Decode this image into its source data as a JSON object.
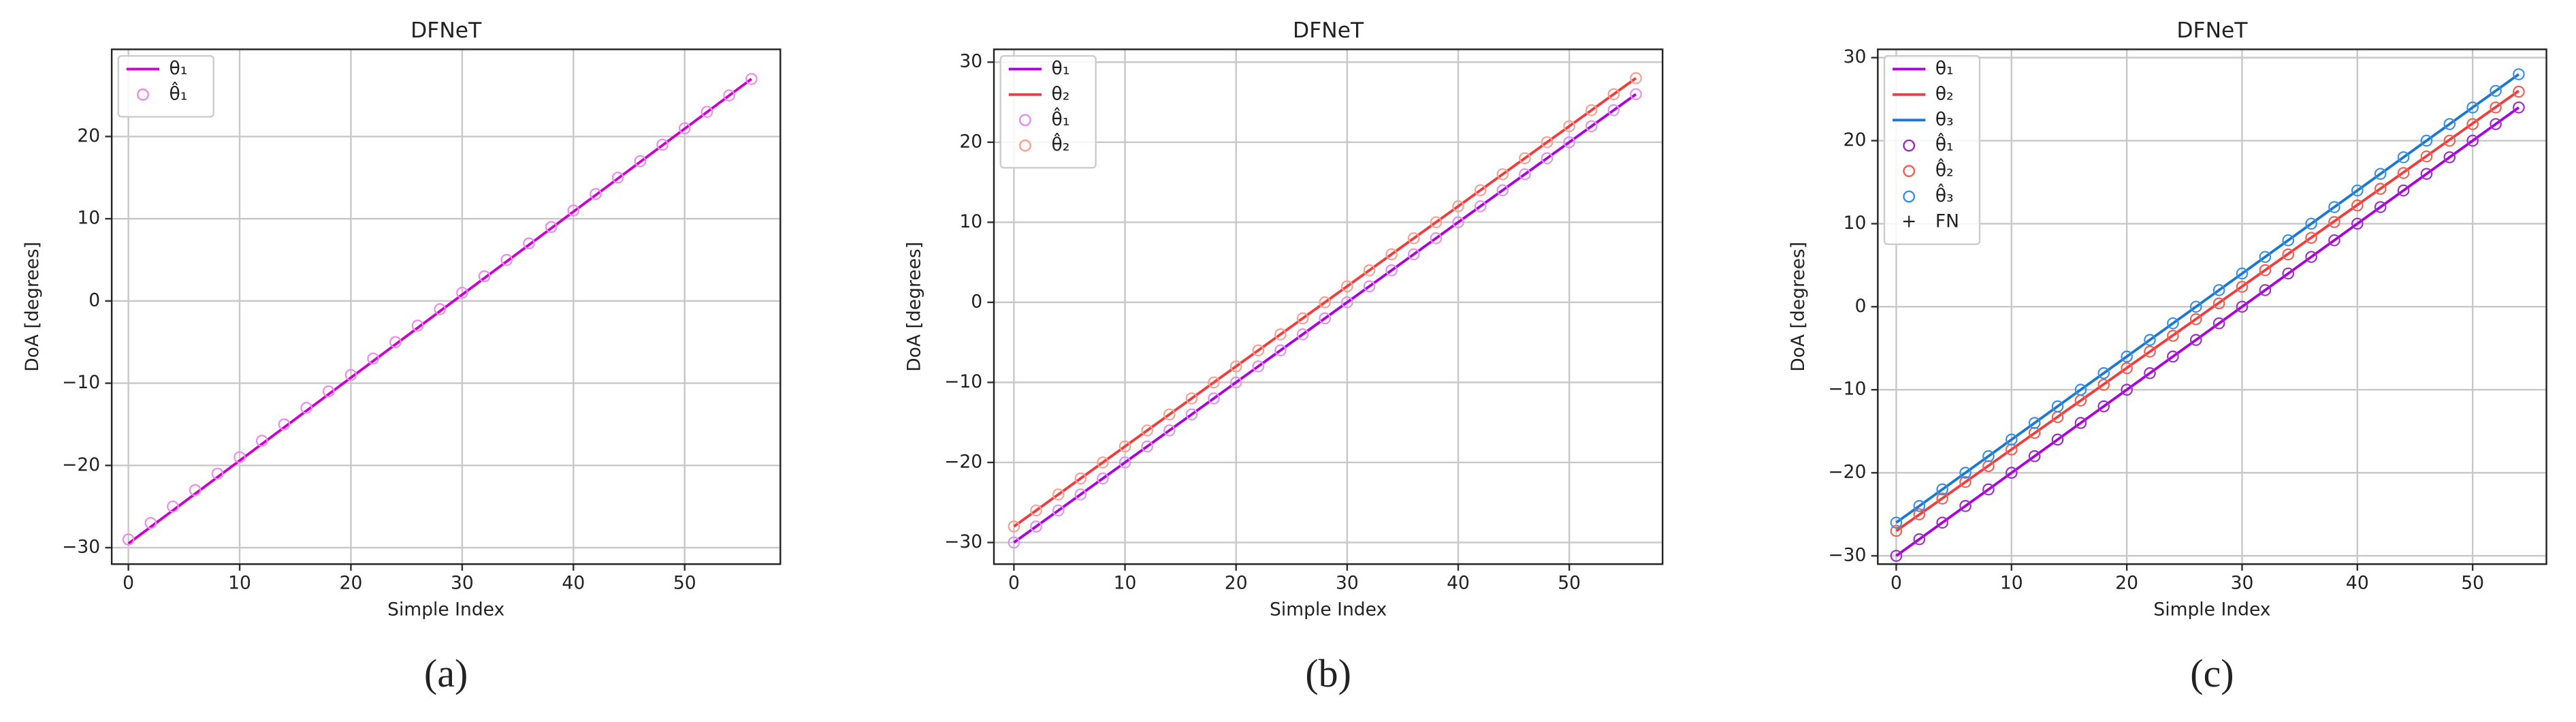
{
  "chart_data": [
    {
      "type": "line",
      "title": "DFNeT",
      "x_label": "Simple Index",
      "y_label": "DoA [degrees]",
      "caption": "(a)",
      "grid": true,
      "legend": "upper left",
      "xlim": [
        -1.5,
        58.6
      ],
      "ylim": [
        -32,
        30.6
      ],
      "xticks": [
        0,
        10,
        20,
        30,
        40,
        50
      ],
      "yticks": [
        {
          "value": -30,
          "label": "−30"
        },
        {
          "value": -20,
          "label": "−20"
        },
        {
          "value": -10,
          "label": "−10"
        },
        0,
        10,
        20
      ],
      "series": [
        {
          "name": "θ₁",
          "style": "line",
          "color": "#cc00cc",
          "x": [
            0,
            56
          ],
          "values": [
            -29.5,
            27
          ]
        },
        {
          "name": "θ̂₁",
          "style": "scatter",
          "color": "#ee88ee",
          "x": [
            0,
            2,
            4,
            6,
            8,
            10,
            12,
            14,
            16,
            18,
            20,
            22,
            24,
            26,
            28,
            30,
            32,
            34,
            36,
            38,
            40,
            42,
            44,
            46,
            48,
            50,
            52,
            54,
            56
          ],
          "values": [
            -29,
            -27,
            -25,
            -23,
            -21,
            -19,
            -17,
            -15,
            -13,
            -11,
            -9,
            -7,
            -5,
            -3,
            -1,
            1,
            3,
            5,
            7,
            9,
            11,
            13,
            15,
            17,
            19,
            21,
            23,
            25,
            27
          ]
        }
      ]
    },
    {
      "type": "line",
      "title": "DFNeT",
      "x_label": "Simple Index",
      "y_label": "DoA [degrees]",
      "caption": "(b)",
      "grid": true,
      "legend": "upper left",
      "xlim": [
        -1.8,
        58.4
      ],
      "ylim": [
        -32.7,
        31.6
      ],
      "xticks": [
        0,
        10,
        20,
        30,
        40,
        50
      ],
      "yticks": [
        {
          "value": -30,
          "label": "−30"
        },
        {
          "value": -20,
          "label": "−20"
        },
        {
          "value": -10,
          "label": "−10"
        },
        0,
        10,
        20,
        30
      ],
      "series": [
        {
          "name": "θ₁",
          "style": "line",
          "color": "#aa00dd",
          "x": [
            0,
            56
          ],
          "values": [
            -30,
            26
          ]
        },
        {
          "name": "θ₂",
          "style": "line",
          "color": "#f03c3c",
          "x": [
            0,
            56
          ],
          "values": [
            -28,
            28
          ]
        },
        {
          "name": "θ̂₁",
          "style": "scatter",
          "color": "#e090ee",
          "x": [
            0,
            2,
            4,
            6,
            8,
            10,
            12,
            14,
            16,
            18,
            20,
            22,
            24,
            26,
            28,
            30,
            32,
            34,
            36,
            38,
            40,
            42,
            44,
            46,
            48,
            50,
            52,
            54,
            56
          ],
          "values": [
            -30,
            -28,
            -26,
            -24,
            -22,
            -20,
            -18,
            -16,
            -14,
            -12,
            -10,
            -8,
            -6,
            -4,
            -2,
            0,
            2,
            4,
            6,
            8,
            10,
            12,
            14,
            16,
            18,
            20,
            22,
            24,
            26
          ]
        },
        {
          "name": "θ̂₂",
          "style": "scatter",
          "color": "#f8a090",
          "x": [
            0,
            2,
            4,
            6,
            8,
            10,
            12,
            14,
            16,
            18,
            20,
            22,
            24,
            26,
            28,
            30,
            32,
            34,
            36,
            38,
            40,
            42,
            44,
            46,
            48,
            50,
            52,
            54,
            56
          ],
          "values": [
            -28,
            -26,
            -24,
            -22,
            -20,
            -18,
            -16,
            -14,
            -12,
            -10,
            -8,
            -6,
            -4,
            -2,
            0,
            2,
            4,
            6,
            8,
            10,
            12,
            14,
            16,
            18,
            20,
            22,
            24,
            26,
            28
          ]
        }
      ]
    },
    {
      "type": "line",
      "title": "DFNeT",
      "x_label": "Simple Index",
      "y_label": "DoA [degrees]",
      "caption": "(c)",
      "grid": true,
      "legend": "upper left",
      "xlim": [
        -1.6,
        56.4
      ],
      "ylim": [
        -31,
        31
      ],
      "xticks": [
        0,
        10,
        20,
        30,
        40,
        50
      ],
      "yticks": [
        {
          "value": -30,
          "label": "−30"
        },
        {
          "value": -20,
          "label": "−20"
        },
        {
          "value": -10,
          "label": "−10"
        },
        0,
        10,
        20,
        30
      ],
      "series": [
        {
          "name": "θ₁",
          "style": "line",
          "color": "#aa00dd",
          "x": [
            0,
            54
          ],
          "values": [
            -30,
            24
          ]
        },
        {
          "name": "θ₂",
          "style": "line",
          "color": "#f03c3c",
          "x": [
            0,
            54
          ],
          "values": [
            -27,
            26
          ]
        },
        {
          "name": "θ₃",
          "style": "line",
          "color": "#1a78d0",
          "x": [
            0,
            54
          ],
          "values": [
            -26,
            28
          ]
        },
        {
          "name": "θ̂₁",
          "style": "scatter",
          "color": "#9a30c0",
          "x": [
            0,
            2,
            4,
            6,
            8,
            10,
            12,
            14,
            16,
            18,
            20,
            22,
            24,
            26,
            28,
            30,
            32,
            34,
            36,
            38,
            40,
            42,
            44,
            46,
            48,
            50,
            52,
            54
          ],
          "values": [
            -30,
            -28,
            -26,
            -24,
            -22,
            -20,
            -18,
            -16,
            -14,
            -12,
            -10,
            -8,
            -6,
            -4,
            -2,
            0,
            2,
            4,
            6,
            8,
            10,
            12,
            14,
            16,
            18,
            20,
            22,
            24
          ]
        },
        {
          "name": "θ̂₂",
          "style": "scatter",
          "color": "#f06050",
          "x": [
            0,
            2,
            4,
            6,
            8,
            10,
            12,
            14,
            16,
            18,
            20,
            22,
            24,
            26,
            28,
            30,
            32,
            34,
            36,
            38,
            40,
            42,
            44,
            46,
            48,
            50,
            52,
            54
          ],
          "values": [
            -27,
            -25,
            -23.1,
            -21.1,
            -19.2,
            -17.2,
            -15.2,
            -13.3,
            -11.3,
            -9.4,
            -7.4,
            -5.4,
            -3.5,
            -1.5,
            0.4,
            2.4,
            4.4,
            6.3,
            8.3,
            10.2,
            12.2,
            14.2,
            16.1,
            18.1,
            20,
            22,
            24,
            25.9
          ]
        },
        {
          "name": "θ̂₃",
          "style": "scatter",
          "color": "#3a90e0",
          "x": [
            0,
            2,
            4,
            6,
            8,
            10,
            12,
            14,
            16,
            18,
            20,
            22,
            24,
            26,
            28,
            30,
            32,
            34,
            36,
            38,
            40,
            42,
            44,
            46,
            48,
            50,
            52,
            54
          ],
          "values": [
            -26,
            -24,
            -22,
            -20,
            -18,
            -16,
            -14,
            -12,
            -10,
            -8,
            -6,
            -4,
            -2,
            0,
            2,
            4,
            6,
            8,
            10,
            12,
            14,
            16,
            18,
            20,
            22,
            24,
            26,
            28
          ]
        },
        {
          "name": "FN",
          "style": "plus",
          "color": "#333333",
          "x": [],
          "values": []
        }
      ]
    }
  ]
}
